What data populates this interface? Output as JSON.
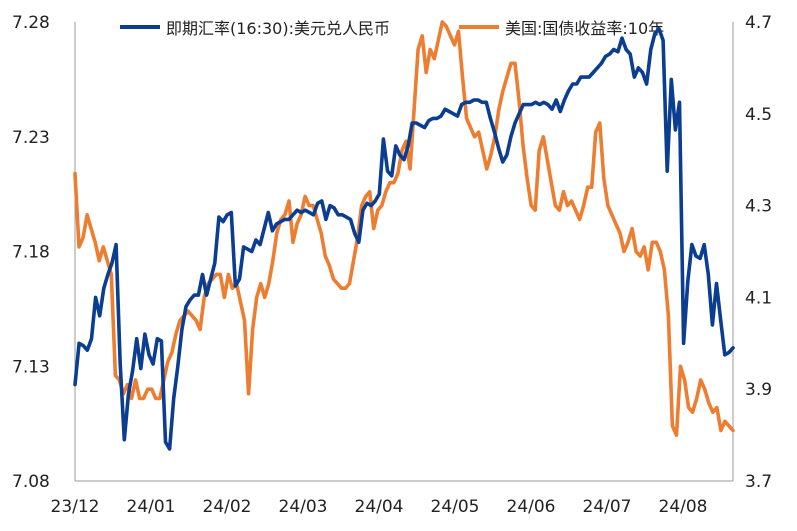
{
  "chart_data": {
    "type": "line",
    "title": "",
    "xlabel": "",
    "x_ticks": [
      "23/12",
      "24/01",
      "24/02",
      "24/03",
      "24/04",
      "24/05",
      "24/06",
      "24/07",
      "24/08"
    ],
    "y_left": {
      "ticks": [
        "7.28",
        "7.23",
        "7.18",
        "7.13",
        "7.08"
      ],
      "range": [
        7.08,
        7.28
      ]
    },
    "y_right": {
      "ticks": [
        "4.7",
        "4.5",
        "4.3",
        "4.1",
        "3.9",
        "3.7"
      ],
      "range": [
        3.7,
        4.7
      ]
    },
    "grid": false,
    "legend_position": "top",
    "series": [
      {
        "name": "即期汇率(16:30):美元兑人民币",
        "axis": "left",
        "color": "#0b3d91",
        "values": [
          7.122,
          7.14,
          7.139,
          7.137,
          7.142,
          7.16,
          7.152,
          7.164,
          7.17,
          7.175,
          7.183,
          7.131,
          7.098,
          7.118,
          7.128,
          7.142,
          7.129,
          7.144,
          7.135,
          7.131,
          7.142,
          7.141,
          7.097,
          7.094,
          7.116,
          7.13,
          7.146,
          7.156,
          7.159,
          7.161,
          7.161,
          7.17,
          7.161,
          7.168,
          7.175,
          7.195,
          7.193,
          7.196,
          7.197,
          7.165,
          7.168,
          7.182,
          7.181,
          7.18,
          7.185,
          7.183,
          7.19,
          7.197,
          7.189,
          7.192,
          7.193,
          7.194,
          7.194,
          7.196,
          7.198,
          7.197,
          7.198,
          7.197,
          7.196,
          7.201,
          7.202,
          7.194,
          7.2,
          7.199,
          7.196,
          7.196,
          7.195,
          7.194,
          7.188,
          7.184,
          7.198,
          7.201,
          7.2,
          7.202,
          7.205,
          7.229,
          7.215,
          7.213,
          7.226,
          7.222,
          7.22,
          7.226,
          7.236,
          7.236,
          7.235,
          7.234,
          7.237,
          7.238,
          7.238,
          7.239,
          7.242,
          7.241,
          7.24,
          7.239,
          7.244,
          7.245,
          7.245,
          7.246,
          7.246,
          7.245,
          7.245,
          7.238,
          7.232,
          7.225,
          7.219,
          7.222,
          7.23,
          7.236,
          7.24,
          7.244,
          7.244,
          7.244,
          7.245,
          7.244,
          7.245,
          7.244,
          7.242,
          7.246,
          7.241,
          7.246,
          7.25,
          7.253,
          7.253,
          7.256,
          7.256,
          7.256,
          7.258,
          7.26,
          7.262,
          7.265,
          7.266,
          7.268,
          7.267,
          7.273,
          7.268,
          7.266,
          7.256,
          7.26,
          7.258,
          7.253,
          7.268,
          7.275,
          7.277,
          7.272,
          7.215,
          7.255,
          7.233,
          7.245,
          7.14,
          7.167,
          7.183,
          7.178,
          7.177,
          7.183,
          7.17,
          7.148,
          7.166,
          7.15,
          7.135,
          7.136,
          7.138
        ]
      },
      {
        "name": "美国:国债收益率:10年",
        "axis": "right",
        "color": "#ed7d31",
        "values": [
          4.37,
          4.21,
          4.23,
          4.28,
          4.25,
          4.22,
          4.18,
          4.21,
          4.18,
          4.15,
          3.93,
          3.92,
          3.89,
          3.91,
          3.88,
          3.92,
          3.88,
          3.88,
          3.9,
          3.9,
          3.88,
          3.88,
          3.92,
          3.96,
          3.98,
          4.02,
          4.05,
          4.06,
          4.07,
          4.06,
          4.05,
          4.03,
          4.1,
          4.13,
          4.14,
          4.15,
          4.15,
          4.1,
          4.15,
          4.12,
          4.13,
          4.09,
          4.05,
          3.89,
          4.03,
          4.1,
          4.13,
          4.1,
          4.13,
          4.18,
          4.24,
          4.27,
          4.28,
          4.31,
          4.22,
          4.26,
          4.28,
          4.32,
          4.3,
          4.3,
          4.27,
          4.24,
          4.19,
          4.17,
          4.14,
          4.13,
          4.12,
          4.12,
          4.13,
          4.18,
          4.23,
          4.3,
          4.32,
          4.33,
          4.25,
          4.29,
          4.3,
          4.33,
          4.35,
          4.35,
          4.37,
          4.42,
          4.44,
          4.38,
          4.51,
          4.64,
          4.67,
          4.59,
          4.64,
          4.62,
          4.66,
          4.7,
          4.69,
          4.67,
          4.65,
          4.68,
          4.58,
          4.49,
          4.47,
          4.45,
          4.46,
          4.42,
          4.38,
          4.41,
          4.45,
          4.51,
          4.55,
          4.58,
          4.61,
          4.61,
          4.53,
          4.43,
          4.36,
          4.3,
          4.29,
          4.42,
          4.45,
          4.4,
          4.35,
          4.3,
          4.29,
          4.33,
          4.3,
          4.31,
          4.29,
          4.27,
          4.3,
          4.34,
          4.34,
          4.46,
          4.48,
          4.36,
          4.3,
          4.28,
          4.26,
          4.24,
          4.2,
          4.22,
          4.25,
          4.2,
          4.19,
          4.21,
          4.16,
          4.22,
          4.22,
          4.2,
          4.16,
          4.06,
          3.82,
          3.8,
          3.95,
          3.92,
          3.86,
          3.85,
          3.88,
          3.92,
          3.9,
          3.87,
          3.85,
          3.86,
          3.81,
          3.83,
          3.82,
          3.81
        ]
      }
    ]
  }
}
